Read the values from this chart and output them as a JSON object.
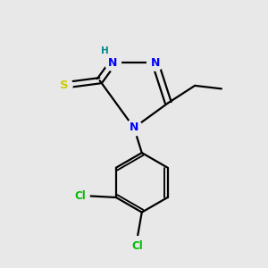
{
  "background_color": "#e8e8e8",
  "atom_colors": {
    "N": "#0000ff",
    "S": "#cccc00",
    "Cl": "#00bb00",
    "C": "#000000",
    "H": "#008888"
  },
  "figsize": [
    3.0,
    3.0
  ],
  "dpi": 100,
  "bond_lw": 1.6,
  "font_size": 9.0
}
